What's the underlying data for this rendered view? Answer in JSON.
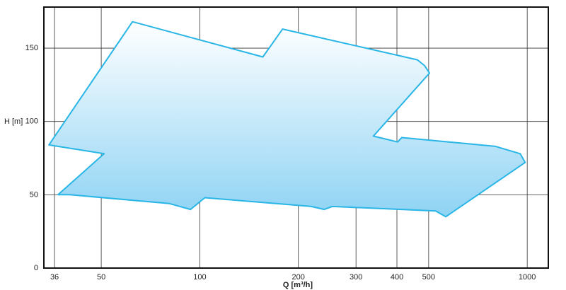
{
  "chart_data": {
    "type": "area",
    "x_label": "Q [m³/h]",
    "y_label": "H [m]",
    "x_log": true,
    "grid": true,
    "color": "#29b6e6",
    "xlim": [
      33.4,
      1160
    ],
    "xticks": [
      36,
      50,
      100,
      200,
      300,
      400,
      500,
      1000
    ],
    "ylim": [
      0,
      178
    ],
    "yticks": [
      0,
      50,
      100,
      150
    ],
    "x": [
      34.6,
      62.3,
      155.8,
      179,
      462,
      486,
      503,
      339,
      402,
      414,
      800,
      952,
      986,
      564,
      525,
      254,
      240,
      219,
      103.6,
      93.7,
      80.7,
      40.1,
      36.9,
      51
    ],
    "values": [
      84,
      168,
      144,
      163,
      142,
      138,
      133,
      90,
      86,
      89,
      83,
      78,
      72,
      35,
      39,
      42,
      40,
      42,
      48,
      40,
      44,
      50,
      50,
      78
    ]
  }
}
